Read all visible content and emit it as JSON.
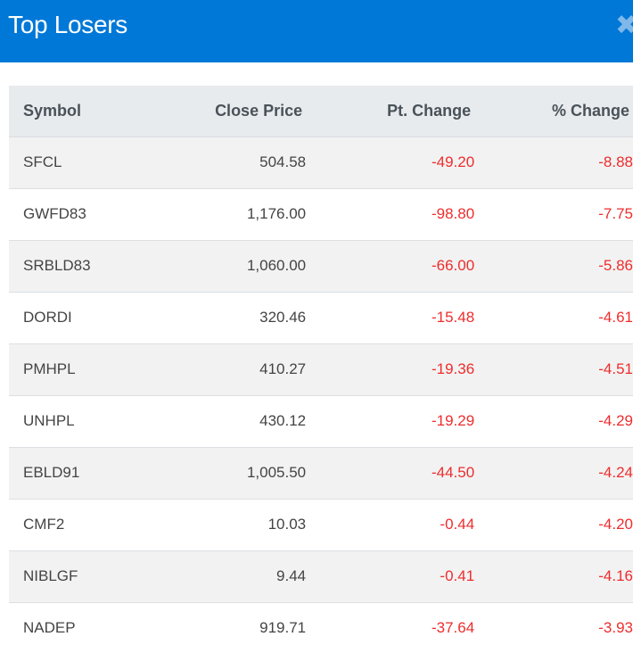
{
  "modal": {
    "title": "Top Losers",
    "close_icon": "close-icon",
    "close_glyph": "✖"
  },
  "colors": {
    "header_bg": "#0078d7",
    "negative": "#ee2d2d",
    "row_stripe": "#f2f2f2",
    "table_header_bg": "#e8ebee"
  },
  "table": {
    "columns": [
      "Symbol",
      "Close Price",
      "Pt. Change",
      "% Change"
    ],
    "rows": [
      {
        "symbol": "SFCL",
        "close": "504.58",
        "pt_change": "-49.20",
        "pct_change": "-8.88"
      },
      {
        "symbol": "GWFD83",
        "close": "1,176.00",
        "pt_change": "-98.80",
        "pct_change": "-7.75"
      },
      {
        "symbol": "SRBLD83",
        "close": "1,060.00",
        "pt_change": "-66.00",
        "pct_change": "-5.86"
      },
      {
        "symbol": "DORDI",
        "close": "320.46",
        "pt_change": "-15.48",
        "pct_change": "-4.61"
      },
      {
        "symbol": "PMHPL",
        "close": "410.27",
        "pt_change": "-19.36",
        "pct_change": "-4.51"
      },
      {
        "symbol": "UNHPL",
        "close": "430.12",
        "pt_change": "-19.29",
        "pct_change": "-4.29"
      },
      {
        "symbol": "EBLD91",
        "close": "1,005.50",
        "pt_change": "-44.50",
        "pct_change": "-4.24"
      },
      {
        "symbol": "CMF2",
        "close": "10.03",
        "pt_change": "-0.44",
        "pct_change": "-4.20"
      },
      {
        "symbol": "NIBLGF",
        "close": "9.44",
        "pt_change": "-0.41",
        "pct_change": "-4.16"
      },
      {
        "symbol": "NADEP",
        "close": "919.71",
        "pt_change": "-37.64",
        "pct_change": "-3.93"
      }
    ]
  }
}
